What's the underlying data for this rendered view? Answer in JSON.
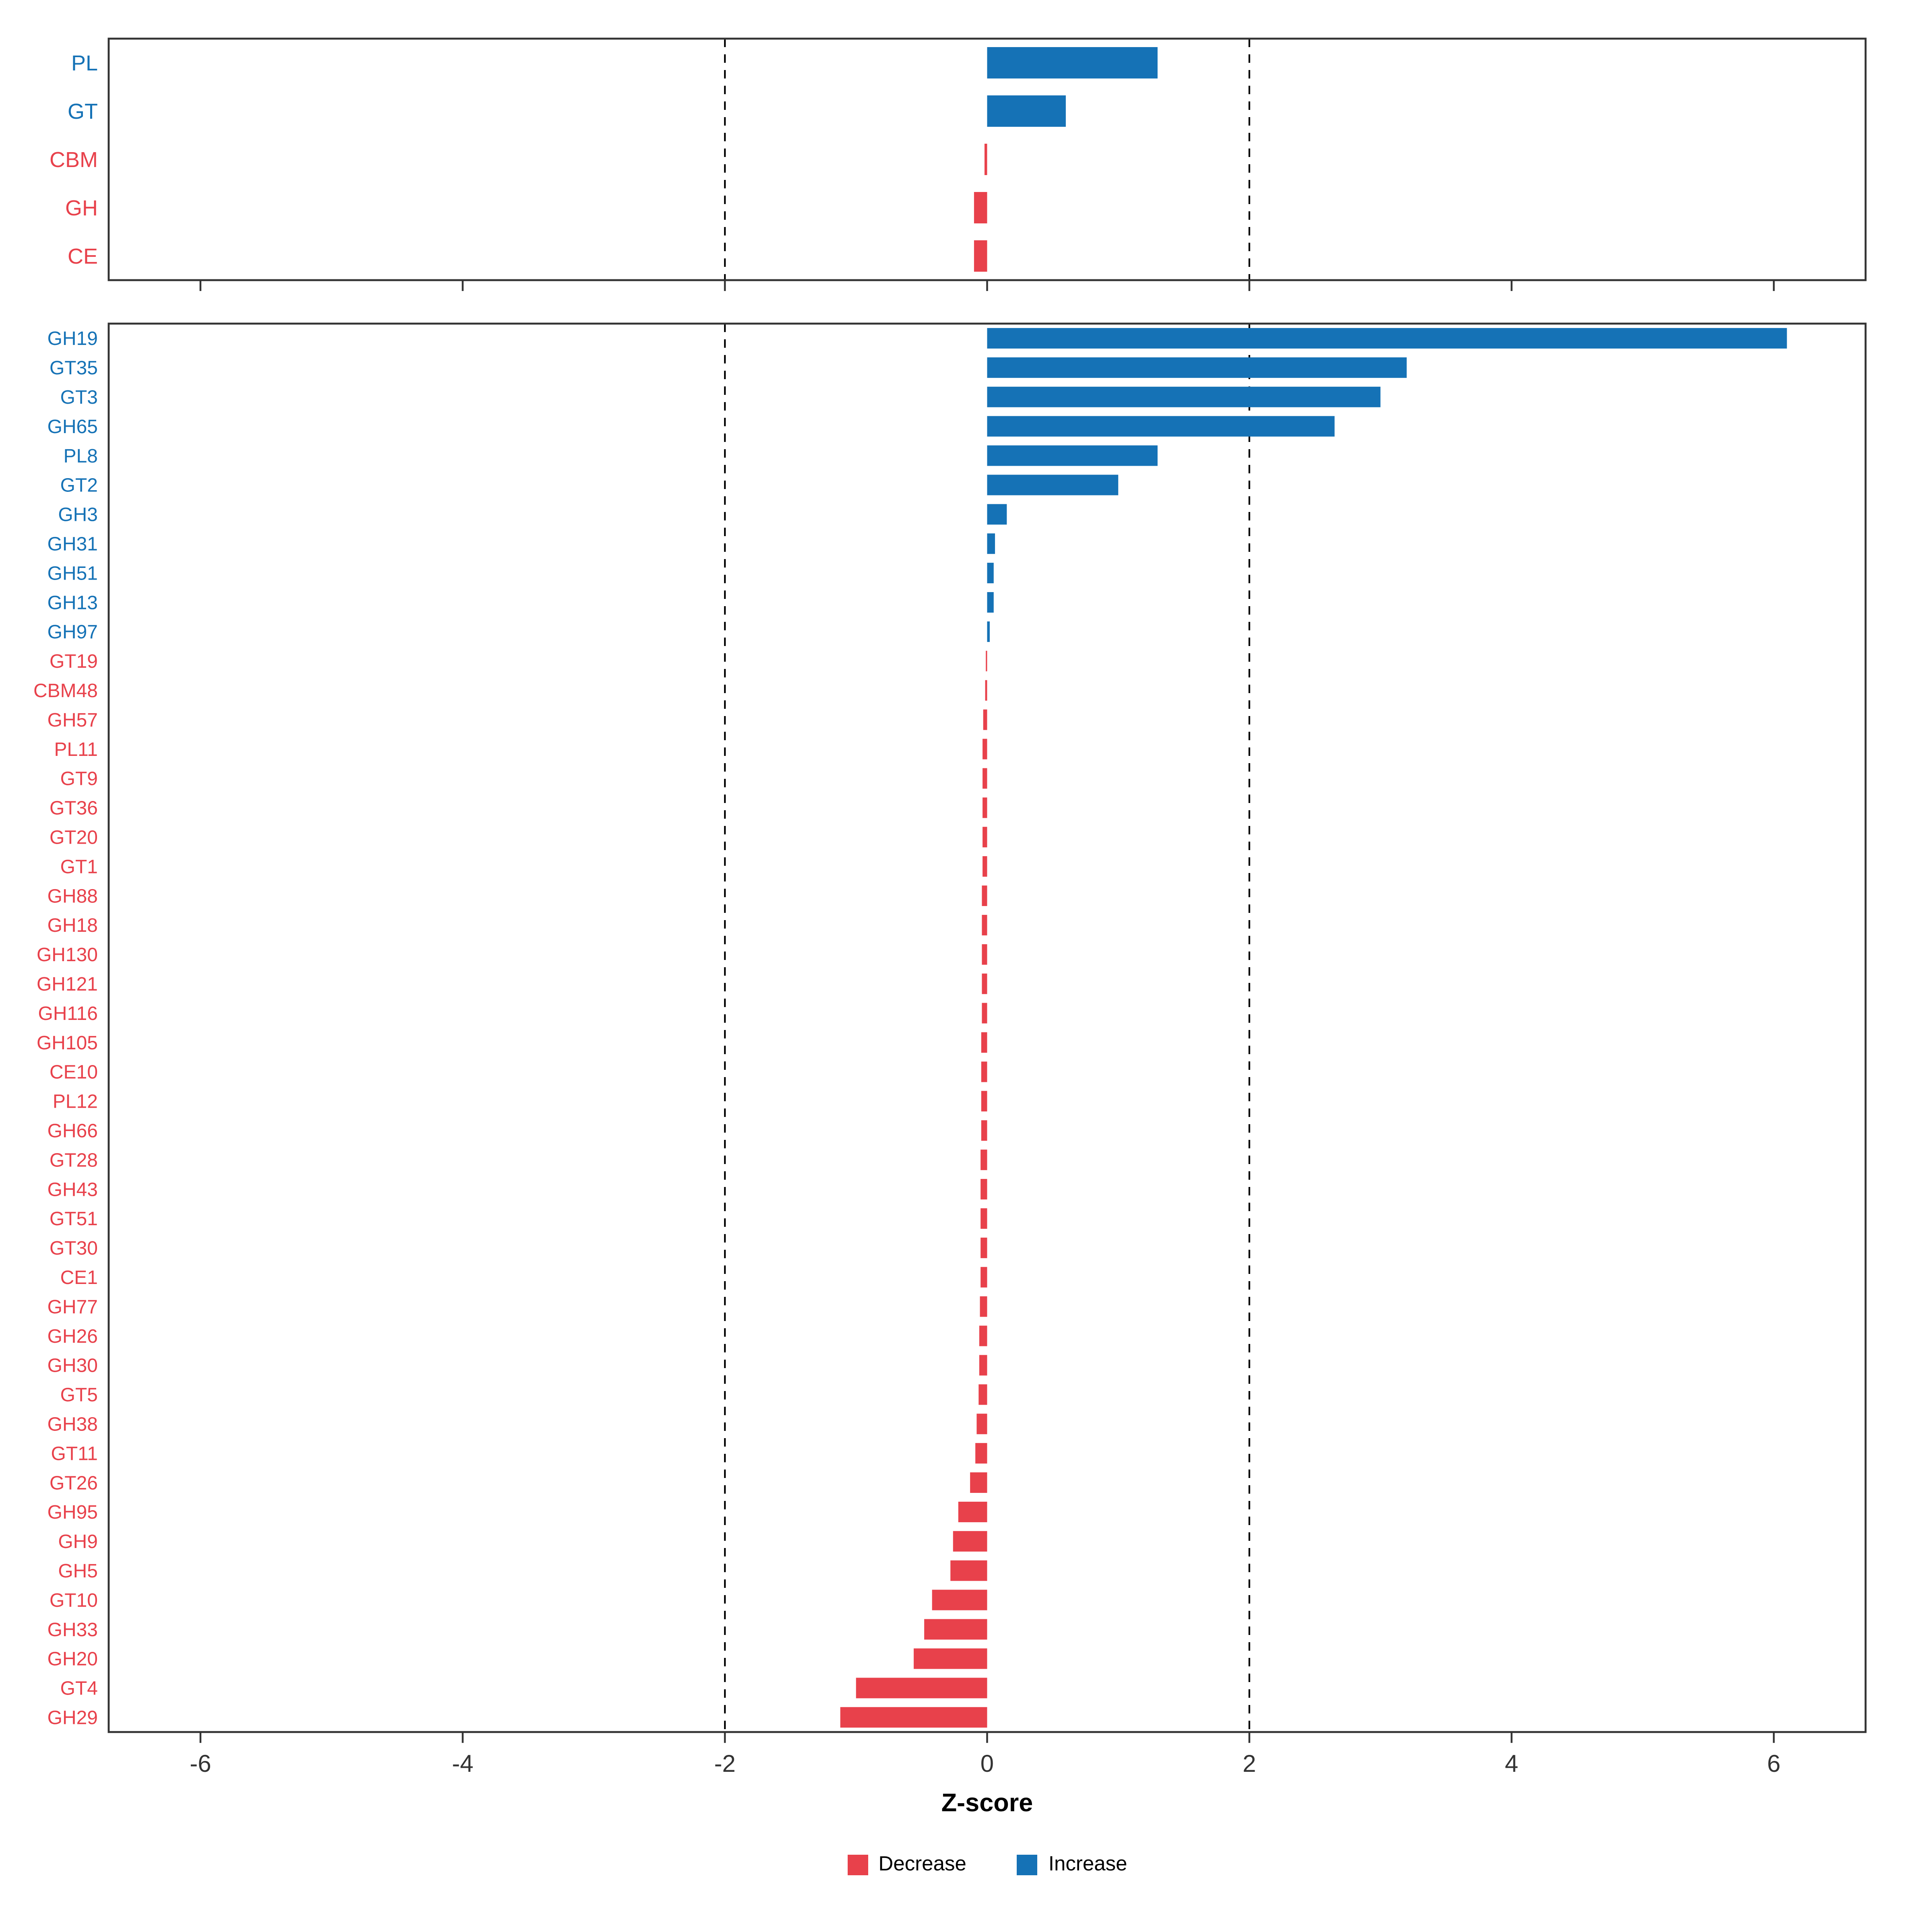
{
  "chart": {
    "xlabel": "Z-score",
    "x_ticks": [
      -6,
      -4,
      -2,
      0,
      2,
      4,
      6
    ],
    "xlim": [
      -6.7,
      6.7
    ],
    "vlines": [
      -2,
      2
    ],
    "colors": {
      "increase": "#1572B6",
      "decrease": "#E8414B"
    },
    "legend": [
      {
        "label": "Decrease",
        "color": "#E8414B"
      },
      {
        "label": "Increase",
        "color": "#1572B6"
      }
    ]
  },
  "chart_data": [
    {
      "type": "bar",
      "orientation": "horizontal",
      "panel": "cazyme-classes",
      "categories": [
        "PL",
        "GT",
        "CBM",
        "GH",
        "CE"
      ],
      "values": [
        1.3,
        0.6,
        -0.02,
        -0.1,
        -0.1
      ],
      "xlabel": "Z-score",
      "xlim": [
        -6.7,
        6.7
      ],
      "grid": false,
      "reference_lines_dashed": [
        -2,
        2
      ]
    },
    {
      "type": "bar",
      "orientation": "horizontal",
      "panel": "cazyme-families",
      "categories": [
        "GH19",
        "GT35",
        "GT3",
        "GH65",
        "PL8",
        "GT2",
        "GH3",
        "GH31",
        "GH51",
        "GH13",
        "GH97",
        "GT19",
        "CBM48",
        "GH57",
        "PL11",
        "GT9",
        "GT36",
        "GT20",
        "GT1",
        "GH88",
        "GH18",
        "GH130",
        "GH121",
        "GH116",
        "GH105",
        "CE10",
        "PL12",
        "GH66",
        "GT28",
        "GH43",
        "GT51",
        "GT30",
        "CE1",
        "GH77",
        "GH26",
        "GH30",
        "GT5",
        "GH38",
        "GT11",
        "GT26",
        "GH95",
        "GH9",
        "GH5",
        "GT10",
        "GH33",
        "GH20",
        "GT4",
        "GH29"
      ],
      "values": [
        6.1,
        3.2,
        3.0,
        2.65,
        1.3,
        1.0,
        0.15,
        0.06,
        0.05,
        0.05,
        0.02,
        -0.01,
        -0.015,
        -0.03,
        -0.035,
        -0.035,
        -0.035,
        -0.035,
        -0.035,
        -0.04,
        -0.04,
        -0.04,
        -0.04,
        -0.04,
        -0.045,
        -0.045,
        -0.045,
        -0.045,
        -0.05,
        -0.05,
        -0.05,
        -0.05,
        -0.05,
        -0.055,
        -0.06,
        -0.06,
        -0.065,
        -0.08,
        -0.09,
        -0.13,
        -0.22,
        -0.26,
        -0.28,
        -0.42,
        -0.48,
        -0.56,
        -1.0,
        -1.12
      ],
      "xlabel": "Z-score",
      "xlim": [
        -6.7,
        6.7
      ],
      "grid": false,
      "reference_lines_dashed": [
        -2,
        2
      ]
    }
  ]
}
